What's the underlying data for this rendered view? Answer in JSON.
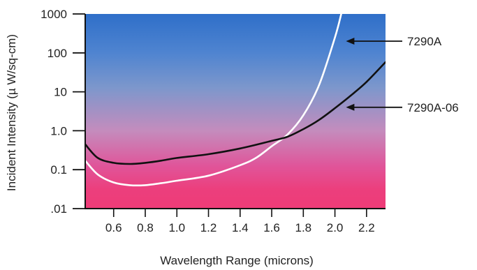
{
  "chart_data": {
    "type": "line",
    "title": "",
    "xlabel": "Wavelength Range (microns)",
    "ylabel": "Incident Intensity (µ W/sq-cm)",
    "x_ticks": [
      "0.6",
      "0.8",
      "1.0",
      "1.2",
      "1.4",
      "1.6",
      "1.8",
      "2.0",
      "2.2"
    ],
    "y_ticks": [
      "1000",
      "100",
      "10",
      "1.0",
      "0.1",
      ".01"
    ],
    "y_tick_values": [
      1000,
      100,
      10,
      1,
      0.1,
      0.01
    ],
    "xlim": [
      0.42,
      2.32
    ],
    "ylim": [
      0.01,
      1000
    ],
    "y_scale": "log",
    "grid": false,
    "legend": "right, with arrows pointing to curves",
    "background_gradient": [
      "#2f6fc9",
      "#4f84d0",
      "#7d97cc",
      "#c48cbd",
      "#e0559a",
      "#ec3f7d",
      "#ee3b77"
    ],
    "series": [
      {
        "name": "7290A",
        "color": "#ffffff",
        "points": [
          [
            0.42,
            0.17
          ],
          [
            0.5,
            0.075
          ],
          [
            0.6,
            0.047
          ],
          [
            0.7,
            0.04
          ],
          [
            0.8,
            0.04
          ],
          [
            0.9,
            0.045
          ],
          [
            1.0,
            0.052
          ],
          [
            1.2,
            0.07
          ],
          [
            1.4,
            0.13
          ],
          [
            1.5,
            0.2
          ],
          [
            1.6,
            0.4
          ],
          [
            1.7,
            0.8
          ],
          [
            1.8,
            2.5
          ],
          [
            1.9,
            15
          ],
          [
            2.0,
            250
          ],
          [
            2.04,
            1000
          ]
        ]
      },
      {
        "name": "7290A-06",
        "color": "#111111",
        "points": [
          [
            0.42,
            0.45
          ],
          [
            0.5,
            0.2
          ],
          [
            0.6,
            0.15
          ],
          [
            0.7,
            0.14
          ],
          [
            0.8,
            0.15
          ],
          [
            0.9,
            0.17
          ],
          [
            1.0,
            0.2
          ],
          [
            1.2,
            0.25
          ],
          [
            1.4,
            0.35
          ],
          [
            1.6,
            0.55
          ],
          [
            1.7,
            0.7
          ],
          [
            1.8,
            1.1
          ],
          [
            1.9,
            1.9
          ],
          [
            2.0,
            3.8
          ],
          [
            2.1,
            8
          ],
          [
            2.2,
            18
          ],
          [
            2.32,
            58
          ]
        ]
      }
    ],
    "legend_entries": [
      {
        "label": "7290A",
        "series": "7290A",
        "arrow_to": [
          2.07,
          200
        ]
      },
      {
        "label": "7290A-06",
        "series": "7290A-06",
        "arrow_to": [
          2.07,
          4
        ]
      }
    ]
  }
}
